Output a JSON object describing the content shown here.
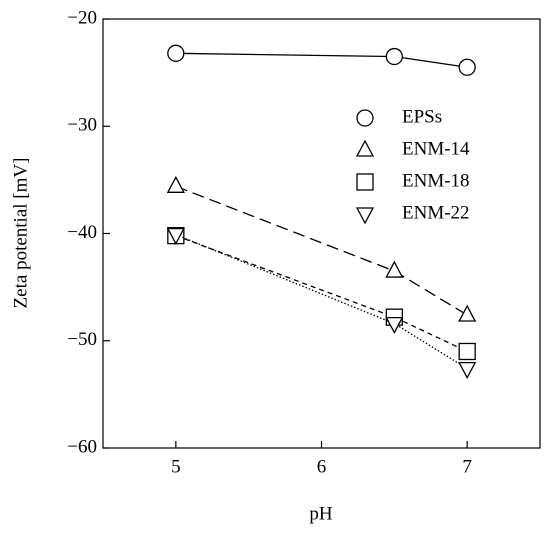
{
  "chart_data": {
    "type": "line",
    "x_label": "pH",
    "y_label": "Zeta potential [mV]",
    "xlim": [
      4.5,
      7.5
    ],
    "xticks": [
      5,
      6,
      7
    ],
    "ylim": [
      -60,
      -20
    ],
    "yticks": [
      {
        "value": -60,
        "label": "−60"
      },
      {
        "value": -50,
        "label": "−50"
      },
      {
        "value": -40,
        "label": "−40"
      },
      {
        "value": -30,
        "label": "−30"
      },
      {
        "value": -20,
        "label": "−20"
      }
    ],
    "legend": "upper right",
    "series": [
      {
        "name": "EPSs",
        "color": "#000000",
        "marker": "circle",
        "dash": "solid",
        "x": [
          5,
          6.5,
          7
        ],
        "values": [
          -23.2,
          -23.5,
          -24.5
        ]
      },
      {
        "name": "ENM-14",
        "color": "#000000",
        "marker": "triangle",
        "dash": "long-dash",
        "x": [
          5,
          6.5,
          7
        ],
        "values": [
          -35.6,
          -43.5,
          -47.6
        ]
      },
      {
        "name": "ENM-18",
        "color": "#000000",
        "marker": "square",
        "dash": "short-dash",
        "x": [
          5,
          6.5,
          7
        ],
        "values": [
          -40.2,
          -47.8,
          -51.0
        ]
      },
      {
        "name": "ENM-22",
        "color": "#000000",
        "marker": "triangle-down",
        "dash": "dotted",
        "x": [
          5,
          6.5,
          7
        ],
        "values": [
          -40.1,
          -48.4,
          -52.6
        ]
      }
    ]
  }
}
